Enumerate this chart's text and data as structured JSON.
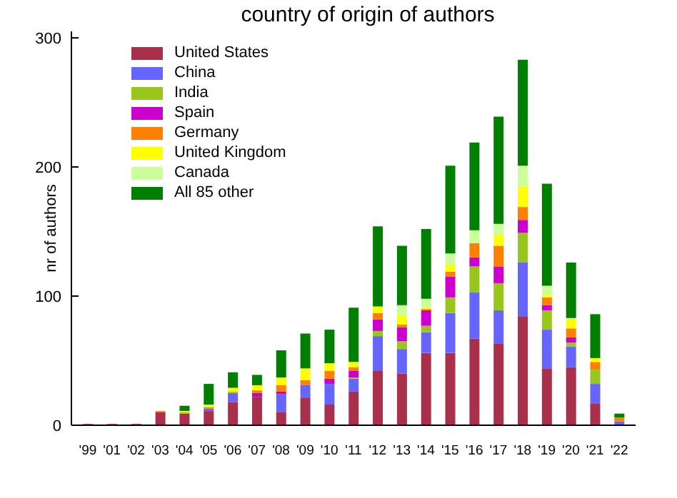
{
  "chart_data": {
    "type": "bar",
    "title": "country of origin of authors",
    "ylabel": "nr of authors",
    "stacked": true,
    "legend": "top left",
    "grid": false,
    "categories": [
      "'99",
      "'01",
      "'02",
      "'03",
      "'04",
      "'05",
      "'06",
      "'07",
      "'08",
      "'09",
      "'10",
      "'11",
      "'12",
      "'13",
      "'14",
      "'15",
      "'16",
      "'17",
      "'18",
      "'19",
      "'20",
      "'21",
      "'22"
    ],
    "ylim": [
      0,
      305
    ],
    "yticks": [
      0,
      100,
      200,
      300
    ],
    "series": [
      {
        "name": "United States",
        "color": "#a8304c",
        "values": [
          1,
          1,
          1,
          10,
          9,
          11,
          18,
          22,
          10,
          21,
          16,
          26,
          42,
          40,
          56,
          56,
          67,
          63,
          84,
          44,
          45,
          17,
          0
        ]
      },
      {
        "name": "China",
        "color": "#6666ff",
        "values": [
          0,
          0,
          0,
          0,
          0,
          2,
          7,
          0,
          14,
          10,
          16,
          10,
          27,
          19,
          16,
          31,
          36,
          26,
          42,
          30,
          16,
          15,
          3
        ]
      },
      {
        "name": "India",
        "color": "#99c61a",
        "values": [
          0,
          0,
          0,
          0,
          1,
          0,
          1,
          0,
          0,
          0,
          0,
          1,
          4,
          6,
          5,
          12,
          20,
          21,
          23,
          15,
          3,
          11,
          0
        ]
      },
      {
        "name": "Spain",
        "color": "#cc00cc",
        "values": [
          0,
          0,
          0,
          0,
          0,
          0,
          0,
          3,
          2,
          0,
          4,
          5,
          9,
          11,
          12,
          16,
          7,
          13,
          10,
          4,
          4,
          0,
          0
        ]
      },
      {
        "name": "Germany",
        "color": "#ff8000",
        "values": [
          0,
          0,
          0,
          1,
          0,
          1,
          0,
          2,
          5,
          4,
          6,
          3,
          5,
          2,
          1,
          4,
          11,
          16,
          10,
          6,
          7,
          6,
          3
        ]
      },
      {
        "name": "United Kingdom",
        "color": "#ffff00",
        "values": [
          0,
          0,
          0,
          0,
          1,
          2,
          3,
          4,
          6,
          9,
          6,
          4,
          5,
          7,
          1,
          5,
          0,
          8,
          16,
          2,
          7,
          3,
          0
        ]
      },
      {
        "name": "Canada",
        "color": "#ccff99",
        "values": [
          0,
          0,
          0,
          0,
          0,
          0,
          0,
          0,
          0,
          0,
          0,
          0,
          0,
          8,
          7,
          9,
          10,
          9,
          16,
          7,
          1,
          0,
          0
        ]
      },
      {
        "name": "All 85 other",
        "color": "#008000",
        "values": [
          0,
          0,
          0,
          0,
          4,
          16,
          12,
          8,
          21,
          27,
          26,
          42,
          62,
          46,
          54,
          68,
          68,
          83,
          82,
          79,
          43,
          34,
          3
        ]
      }
    ]
  }
}
